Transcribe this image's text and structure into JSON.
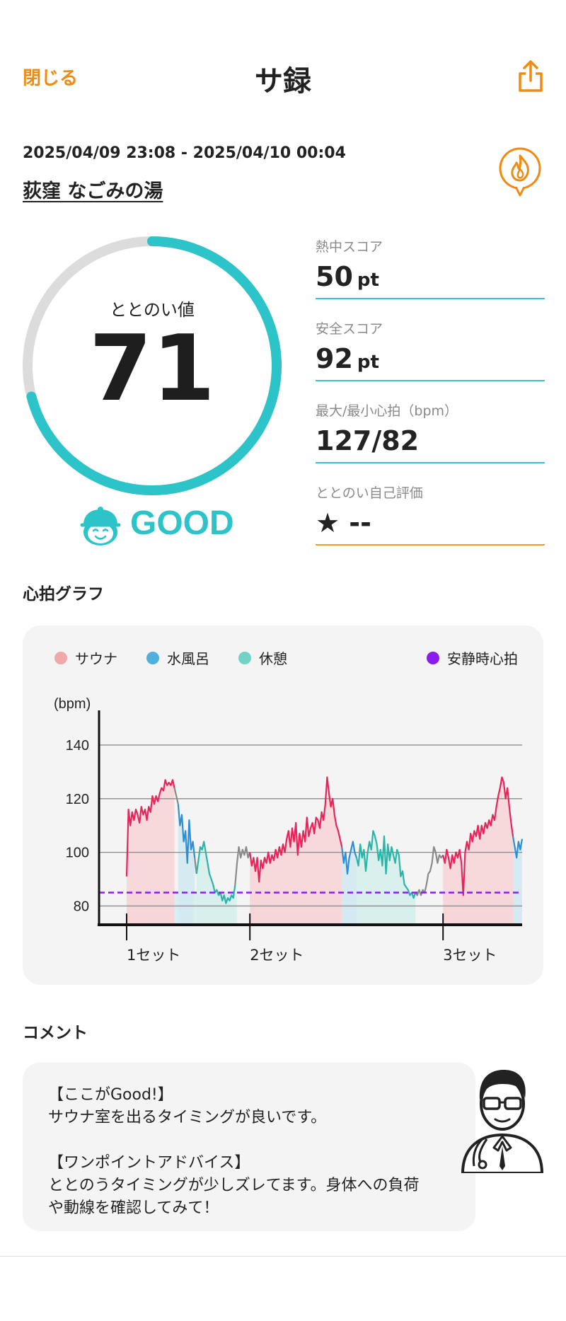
{
  "header": {
    "close_label": "閉じる",
    "title": "サ録",
    "share_icon": "share-icon"
  },
  "session": {
    "datetime": "2025/04/09 23:08 - 2025/04/10 00:04",
    "facility": "荻窪 なごみの湯"
  },
  "score": {
    "label": "ととのい値",
    "value": "71",
    "gauge_fraction": 0.71,
    "rating": "GOOD"
  },
  "metrics": [
    {
      "label": "熱中スコア",
      "value": "50",
      "unit": "pt"
    },
    {
      "label": "安全スコア",
      "value": "92",
      "unit": "pt"
    },
    {
      "label": "最大/最小心拍（bpm）",
      "value": "127/82",
      "unit": ""
    },
    {
      "label": "ととのい自己評価",
      "value": "★ --",
      "unit": ""
    }
  ],
  "sections": {
    "graph_title": "心拍グラフ",
    "comment_title": "コメント"
  },
  "colors": {
    "accent_orange": "#f08a10",
    "teal": "#2cc3c9",
    "sauna": "#e8255a",
    "water": "#2e8fd6",
    "rest": "#2bb5a8",
    "resting_hr": "#8a1cf0"
  },
  "chart_data": {
    "type": "line",
    "ylabel": "(bpm)",
    "yticks": [
      80,
      100,
      120,
      140
    ],
    "ylim": [
      73,
      145
    ],
    "xlim": [
      0,
      230
    ],
    "legend": [
      {
        "name": "サウナ",
        "color": "#f0a8a8"
      },
      {
        "name": "水風呂",
        "color": "#4fb0de"
      },
      {
        "name": "休憩",
        "color": "#72d2c4"
      },
      {
        "name": "安静時心拍",
        "color": "#8a1cf0"
      }
    ],
    "set_markers": [
      {
        "x": 15,
        "label": "1セット"
      },
      {
        "x": 82,
        "label": "2セット"
      },
      {
        "x": 187,
        "label": "3セット"
      }
    ],
    "resting_hr": 85,
    "phases": [
      {
        "type": "sauna",
        "start": 15,
        "end": 41
      },
      {
        "type": "water",
        "start": 41,
        "end": 51
      },
      {
        "type": "rest",
        "start": 51,
        "end": 75
      },
      {
        "type": "sauna",
        "start": 82,
        "end": 132
      },
      {
        "type": "water",
        "start": 132,
        "end": 140
      },
      {
        "type": "rest",
        "start": 140,
        "end": 172
      },
      {
        "type": "sauna",
        "start": 187,
        "end": 225
      },
      {
        "type": "water",
        "start": 225,
        "end": 230
      }
    ],
    "series": [
      {
        "type": "sauna",
        "color": "#e8255a",
        "points": [
          [
            15,
            91
          ],
          [
            16,
            116
          ],
          [
            17,
            110
          ],
          [
            18,
            115
          ],
          [
            19,
            112
          ],
          [
            20,
            116
          ],
          [
            21,
            114
          ],
          [
            22,
            111
          ],
          [
            23,
            117
          ],
          [
            24,
            114
          ],
          [
            25,
            116
          ],
          [
            26,
            112
          ],
          [
            27,
            117
          ],
          [
            28,
            115
          ],
          [
            29,
            121
          ],
          [
            30,
            118
          ],
          [
            31,
            121
          ],
          [
            32,
            119
          ],
          [
            33,
            122
          ],
          [
            34,
            124
          ],
          [
            35,
            123
          ],
          [
            36,
            127
          ],
          [
            37,
            125
          ],
          [
            38,
            126
          ],
          [
            39,
            125
          ],
          [
            40,
            127
          ],
          [
            41,
            124
          ]
        ]
      },
      {
        "type": "transition",
        "color": "#8a8a8a",
        "points": [
          [
            41,
            124
          ],
          [
            42,
            121
          ],
          [
            43,
            118
          ]
        ]
      },
      {
        "type": "water",
        "color": "#2e8fd6",
        "points": [
          [
            43,
            118
          ],
          [
            44,
            110
          ],
          [
            45,
            114
          ],
          [
            46,
            104
          ],
          [
            47,
            108
          ],
          [
            48,
            96
          ],
          [
            49,
            112
          ],
          [
            50,
            101
          ],
          [
            51,
            104
          ],
          [
            52,
            98
          ]
        ]
      },
      {
        "type": "transition",
        "color": "#8a8a8a",
        "points": [
          [
            52,
            98
          ],
          [
            53,
            92
          ]
        ]
      },
      {
        "type": "rest",
        "color": "#2bb5a8",
        "points": [
          [
            53,
            92
          ],
          [
            54,
            97
          ],
          [
            55,
            102
          ],
          [
            56,
            101
          ],
          [
            57,
            104
          ],
          [
            58,
            100
          ],
          [
            59,
            96
          ],
          [
            60,
            92
          ],
          [
            61,
            90
          ],
          [
            62,
            88
          ],
          [
            63,
            85
          ],
          [
            64,
            86
          ],
          [
            65,
            84
          ],
          [
            66,
            85
          ],
          [
            67,
            82
          ],
          [
            68,
            84
          ],
          [
            69,
            81
          ],
          [
            70,
            83
          ],
          [
            71,
            82
          ],
          [
            72,
            84
          ],
          [
            73,
            83
          ],
          [
            74,
            88
          ]
        ]
      },
      {
        "type": "transition",
        "color": "#8a8a8a",
        "points": [
          [
            74,
            88
          ],
          [
            75,
            96
          ],
          [
            76,
            102
          ],
          [
            77,
            98
          ],
          [
            78,
            101
          ],
          [
            79,
            99
          ],
          [
            80,
            102
          ],
          [
            81,
            98
          ],
          [
            82,
            100
          ]
        ]
      },
      {
        "type": "sauna",
        "color": "#e8255a",
        "points": [
          [
            82,
            100
          ],
          [
            83,
            95
          ],
          [
            84,
            98
          ],
          [
            85,
            93
          ],
          [
            86,
            98
          ],
          [
            87,
            89
          ],
          [
            88,
            97
          ],
          [
            89,
            94
          ],
          [
            90,
            98
          ],
          [
            91,
            96
          ],
          [
            92,
            100
          ],
          [
            93,
            96
          ],
          [
            94,
            99
          ],
          [
            95,
            97
          ],
          [
            96,
            101
          ],
          [
            97,
            98
          ],
          [
            98,
            102
          ],
          [
            99,
            99
          ],
          [
            100,
            103
          ],
          [
            101,
            100
          ],
          [
            102,
            105
          ],
          [
            103,
            108
          ],
          [
            104,
            102
          ],
          [
            105,
            109
          ],
          [
            106,
            104
          ],
          [
            107,
            111
          ],
          [
            108,
            99
          ],
          [
            109,
            107
          ],
          [
            110,
            102
          ],
          [
            111,
            108
          ],
          [
            112,
            104
          ],
          [
            113,
            113
          ],
          [
            114,
            106
          ],
          [
            115,
            109
          ],
          [
            116,
            111
          ],
          [
            117,
            107
          ],
          [
            118,
            113
          ],
          [
            119,
            112
          ],
          [
            120,
            109
          ],
          [
            121,
            115
          ],
          [
            122,
            112
          ],
          [
            123,
            118
          ],
          [
            124,
            128
          ],
          [
            125,
            122
          ],
          [
            126,
            117
          ],
          [
            127,
            120
          ],
          [
            128,
            114
          ],
          [
            129,
            110
          ],
          [
            130,
            108
          ],
          [
            131,
            105
          ],
          [
            132,
            102
          ]
        ]
      },
      {
        "type": "water",
        "color": "#2e8fd6",
        "points": [
          [
            132,
            102
          ],
          [
            133,
            96
          ],
          [
            134,
            100
          ],
          [
            135,
            92
          ],
          [
            136,
            98
          ],
          [
            137,
            101
          ],
          [
            138,
            104
          ],
          [
            139,
            100
          ],
          [
            140,
            98
          ]
        ]
      },
      {
        "type": "rest",
        "color": "#2bb5a8",
        "points": [
          [
            140,
            98
          ],
          [
            141,
            95
          ],
          [
            142,
            103
          ],
          [
            143,
            98
          ],
          [
            144,
            101
          ],
          [
            145,
            93
          ],
          [
            146,
            100
          ],
          [
            147,
            104
          ],
          [
            148,
            101
          ],
          [
            149,
            108
          ],
          [
            150,
            106
          ],
          [
            151,
            103
          ],
          [
            152,
            97
          ],
          [
            153,
            101
          ],
          [
            154,
            95
          ],
          [
            155,
            106
          ],
          [
            156,
            92
          ],
          [
            157,
            103
          ],
          [
            158,
            97
          ],
          [
            159,
            102
          ],
          [
            160,
            99
          ],
          [
            161,
            96
          ],
          [
            162,
            101
          ],
          [
            163,
            99
          ],
          [
            164,
            91
          ],
          [
            165,
            93
          ],
          [
            166,
            88
          ],
          [
            167,
            87
          ],
          [
            168,
            86
          ],
          [
            169,
            84
          ],
          [
            170,
            85
          ],
          [
            171,
            83
          ],
          [
            172,
            85
          ]
        ]
      },
      {
        "type": "transition",
        "color": "#8a8a8a",
        "points": [
          [
            172,
            85
          ],
          [
            173,
            84
          ],
          [
            174,
            86
          ],
          [
            175,
            84
          ],
          [
            176,
            86
          ],
          [
            177,
            85
          ],
          [
            178,
            88
          ],
          [
            179,
            92
          ],
          [
            180,
            93
          ],
          [
            181,
            96
          ],
          [
            182,
            102
          ],
          [
            183,
            100
          ],
          [
            184,
            96
          ],
          [
            185,
            99
          ],
          [
            186,
            98
          ],
          [
            187,
            99
          ]
        ]
      },
      {
        "type": "sauna",
        "color": "#e8255a",
        "points": [
          [
            187,
            99
          ],
          [
            188,
            96
          ],
          [
            189,
            101
          ],
          [
            190,
            98
          ],
          [
            191,
            94
          ],
          [
            192,
            99
          ],
          [
            193,
            96
          ],
          [
            194,
            100
          ],
          [
            195,
            98
          ],
          [
            196,
            101
          ],
          [
            197,
            96
          ],
          [
            198,
            84
          ],
          [
            199,
            100
          ],
          [
            200,
            104
          ],
          [
            201,
            101
          ],
          [
            202,
            107
          ],
          [
            203,
            104
          ],
          [
            204,
            108
          ],
          [
            205,
            106
          ],
          [
            206,
            110
          ],
          [
            207,
            105
          ],
          [
            208,
            110
          ],
          [
            209,
            107
          ],
          [
            210,
            111
          ],
          [
            211,
            109
          ],
          [
            212,
            112
          ],
          [
            213,
            110
          ],
          [
            214,
            114
          ],
          [
            215,
            112
          ],
          [
            216,
            117
          ],
          [
            217,
            121
          ],
          [
            218,
            124
          ],
          [
            219,
            128
          ],
          [
            220,
            126
          ],
          [
            221,
            120
          ],
          [
            222,
            124
          ],
          [
            223,
            117
          ],
          [
            224,
            111
          ],
          [
            225,
            106
          ]
        ]
      },
      {
        "type": "water",
        "color": "#2e8fd6",
        "points": [
          [
            225,
            106
          ],
          [
            226,
            102
          ],
          [
            227,
            98
          ],
          [
            228,
            104
          ],
          [
            229,
            101
          ],
          [
            230,
            105
          ]
        ]
      }
    ]
  },
  "comment": {
    "text": "【ここがGood!】\nサウナ室を出るタイミングが良いです。\n\n【ワンポイントアドバイス】\nととのうタイミングが少しズレてます。身体への負荷\nや動線を確認してみて！"
  }
}
